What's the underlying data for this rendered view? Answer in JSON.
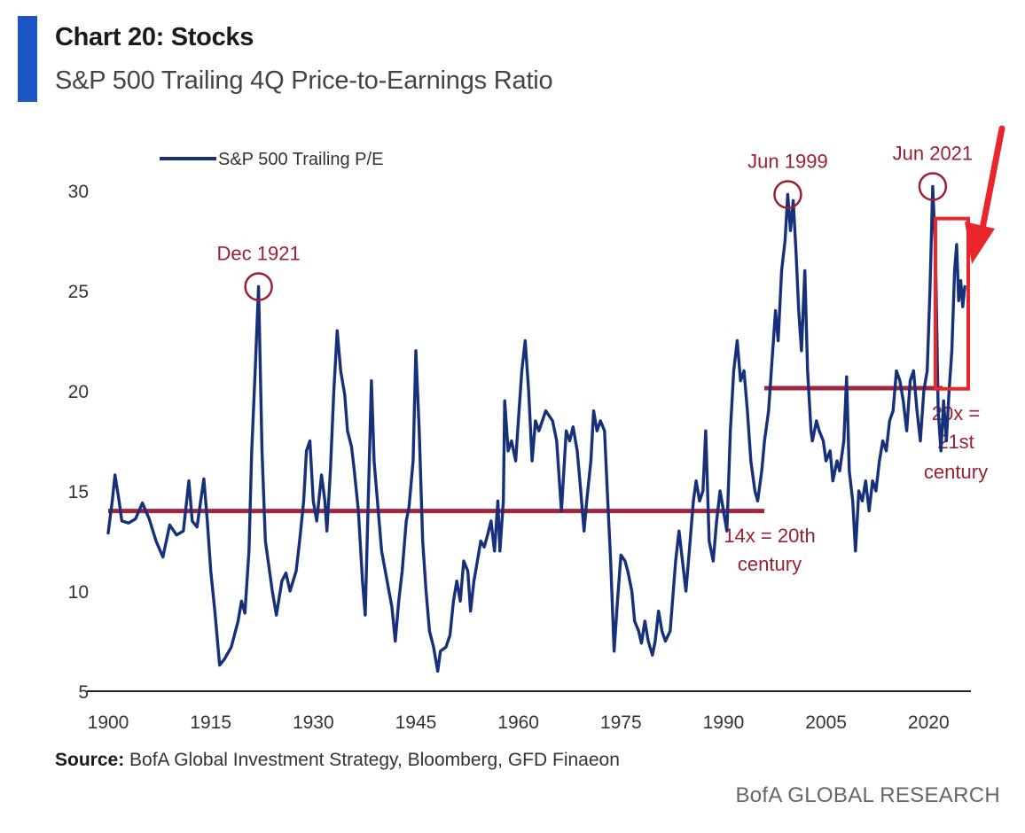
{
  "header": {
    "title": "Chart 20: Stocks",
    "subtitle": "S&P 500 Trailing 4Q Price-to-Earnings Ratio"
  },
  "footer": {
    "source_label": "Source:",
    "source_text": " BofA Global Investment Strategy, Bloomberg, GFD Finaeon",
    "brand": "BofA GLOBAL RESEARCH"
  },
  "colors": {
    "series": "#16307a",
    "annotation": "#9b2032",
    "reference_line": "#a0263c",
    "highlight_box": "#e8262b",
    "title_bar": "#1d56c4"
  },
  "chart_data": {
    "type": "line",
    "title": "",
    "xlabel": "",
    "ylabel": "",
    "xlim": [
      1900,
      2024
    ],
    "ylim": [
      5,
      30
    ],
    "x_ticks": [
      "1900",
      "1915",
      "1930",
      "1945",
      "1960",
      "1975",
      "1990",
      "2005",
      "2020"
    ],
    "y_ticks": [
      "5",
      "10",
      "15",
      "20",
      "25",
      "30"
    ],
    "grid": false,
    "legend_position": "top-left",
    "series": [
      {
        "name": "S&P 500 Trailing P/E",
        "points": [
          [
            1900,
            12.9
          ],
          [
            1900.6,
            14.5
          ],
          [
            1901,
            15.8
          ],
          [
            1901.6,
            14.5
          ],
          [
            1902,
            13.5
          ],
          [
            1903,
            13.4
          ],
          [
            1904,
            13.6
          ],
          [
            1905,
            14.4
          ],
          [
            1906,
            13.6
          ],
          [
            1907,
            12.5
          ],
          [
            1908,
            11.7
          ],
          [
            1909,
            13.3
          ],
          [
            1910,
            12.8
          ],
          [
            1911,
            13.0
          ],
          [
            1911.8,
            15.5
          ],
          [
            1912.3,
            13.5
          ],
          [
            1913,
            13.2
          ],
          [
            1914,
            15.6
          ],
          [
            1914.5,
            13.5
          ],
          [
            1915,
            11.0
          ],
          [
            1915.6,
            9.0
          ],
          [
            1916.3,
            6.3
          ],
          [
            1917,
            6.6
          ],
          [
            1918,
            7.2
          ],
          [
            1919,
            8.5
          ],
          [
            1919.5,
            9.5
          ],
          [
            1920,
            8.9
          ],
          [
            1920.6,
            12.0
          ],
          [
            1921,
            17.0
          ],
          [
            1921.5,
            21.0
          ],
          [
            1922,
            25.2
          ],
          [
            1922.5,
            17.0
          ],
          [
            1923,
            12.5
          ],
          [
            1924,
            10.0
          ],
          [
            1924.6,
            8.8
          ],
          [
            1925.4,
            10.5
          ],
          [
            1926,
            10.9
          ],
          [
            1926.6,
            10.0
          ],
          [
            1927.5,
            11.0
          ],
          [
            1928,
            12.5
          ],
          [
            1928.6,
            14.5
          ],
          [
            1929,
            17.0
          ],
          [
            1929.5,
            17.5
          ],
          [
            1930,
            14.5
          ],
          [
            1930.5,
            13.5
          ],
          [
            1931.2,
            15.8
          ],
          [
            1931.7,
            14.5
          ],
          [
            1932,
            13.0
          ],
          [
            1932.5,
            16.0
          ],
          [
            1933,
            20.0
          ],
          [
            1933.5,
            23.0
          ],
          [
            1934,
            21.0
          ],
          [
            1934.6,
            19.8
          ],
          [
            1935,
            18.0
          ],
          [
            1935.6,
            17.2
          ],
          [
            1936,
            16.0
          ],
          [
            1936.6,
            14.0
          ],
          [
            1937.2,
            10.5
          ],
          [
            1937.6,
            8.8
          ],
          [
            1938,
            14.0
          ],
          [
            1938.5,
            20.5
          ],
          [
            1938.9,
            16.5
          ],
          [
            1939.5,
            14.0
          ],
          [
            1940,
            12.0
          ],
          [
            1940.8,
            10.5
          ],
          [
            1941.5,
            9.2
          ],
          [
            1942,
            7.5
          ],
          [
            1942.5,
            9.5
          ],
          [
            1943,
            11.0
          ],
          [
            1943.6,
            13.5
          ],
          [
            1944,
            14.2
          ],
          [
            1944.6,
            16.5
          ],
          [
            1945,
            22.0
          ],
          [
            1945.5,
            18.0
          ],
          [
            1946,
            12.5
          ],
          [
            1946.5,
            10.0
          ],
          [
            1947,
            8.0
          ],
          [
            1947.6,
            7.2
          ],
          [
            1948.2,
            6.0
          ],
          [
            1948.6,
            7.0
          ],
          [
            1949.4,
            7.2
          ],
          [
            1950,
            7.8
          ],
          [
            1950.5,
            9.5
          ],
          [
            1951,
            10.5
          ],
          [
            1951.5,
            9.5
          ],
          [
            1952,
            11.5
          ],
          [
            1952.6,
            11.0
          ],
          [
            1953,
            9.0
          ],
          [
            1953.5,
            10.5
          ],
          [
            1954,
            11.5
          ],
          [
            1954.5,
            12.5
          ],
          [
            1955,
            12.2
          ],
          [
            1955.5,
            12.8
          ],
          [
            1956,
            13.5
          ],
          [
            1956.5,
            12.0
          ],
          [
            1957,
            14.5
          ],
          [
            1957.3,
            12.0
          ],
          [
            1957.8,
            14.5
          ],
          [
            1958,
            19.5
          ],
          [
            1958.5,
            17.0
          ],
          [
            1959,
            17.5
          ],
          [
            1959.6,
            16.5
          ],
          [
            1960,
            18.5
          ],
          [
            1960.5,
            21.0
          ],
          [
            1961,
            22.5
          ],
          [
            1961.5,
            20.0
          ],
          [
            1962,
            16.5
          ],
          [
            1962.5,
            18.5
          ],
          [
            1963,
            18.0
          ],
          [
            1964,
            19.0
          ],
          [
            1965,
            18.5
          ],
          [
            1965.6,
            17.5
          ],
          [
            1966.3,
            14.0
          ],
          [
            1967,
            18.0
          ],
          [
            1967.5,
            17.5
          ],
          [
            1968,
            18.2
          ],
          [
            1968.6,
            17.0
          ],
          [
            1969,
            15.5
          ],
          [
            1969.6,
            13.0
          ],
          [
            1970,
            14.5
          ],
          [
            1970.6,
            16.5
          ],
          [
            1971,
            19.0
          ],
          [
            1971.5,
            18.0
          ],
          [
            1972,
            18.5
          ],
          [
            1972.6,
            18.0
          ],
          [
            1973,
            15.0
          ],
          [
            1973.5,
            11.5
          ],
          [
            1974,
            7.0
          ],
          [
            1974.5,
            9.5
          ],
          [
            1975,
            11.8
          ],
          [
            1975.6,
            11.5
          ],
          [
            1976,
            11.0
          ],
          [
            1976.6,
            10.0
          ],
          [
            1977,
            8.5
          ],
          [
            1977.6,
            8.0
          ],
          [
            1978,
            7.4
          ],
          [
            1978.5,
            8.5
          ],
          [
            1979,
            7.5
          ],
          [
            1979.6,
            6.8
          ],
          [
            1980,
            7.5
          ],
          [
            1980.5,
            9.0
          ],
          [
            1981,
            8.0
          ],
          [
            1981.5,
            7.5
          ],
          [
            1982.2,
            8.0
          ],
          [
            1983,
            11.5
          ],
          [
            1983.5,
            13.0
          ],
          [
            1984,
            11.5
          ],
          [
            1984.5,
            10.0
          ],
          [
            1985,
            12.0
          ],
          [
            1985.6,
            14.5
          ],
          [
            1986,
            15.5
          ],
          [
            1986.5,
            14.5
          ],
          [
            1987,
            15.0
          ],
          [
            1987.4,
            18.0
          ],
          [
            1987.9,
            12.5
          ],
          [
            1988.5,
            11.5
          ],
          [
            1989,
            13.5
          ],
          [
            1989.5,
            15.0
          ],
          [
            1990,
            14.0
          ],
          [
            1990.5,
            13.0
          ],
          [
            1991,
            18.0
          ],
          [
            1991.5,
            21.0
          ],
          [
            1992,
            22.5
          ],
          [
            1992.5,
            20.5
          ],
          [
            1993,
            21.0
          ],
          [
            1993.5,
            19.0
          ],
          [
            1994,
            16.5
          ],
          [
            1994.6,
            15.0
          ],
          [
            1995,
            14.5
          ],
          [
            1995.6,
            16.0
          ],
          [
            1996,
            17.5
          ],
          [
            1996.6,
            19.0
          ],
          [
            1997,
            21.0
          ],
          [
            1997.6,
            24.0
          ],
          [
            1998,
            22.5
          ],
          [
            1998.5,
            26.0
          ],
          [
            1999,
            27.5
          ],
          [
            1999.4,
            29.8
          ],
          [
            1999.8,
            28.0
          ],
          [
            2000.2,
            29.5
          ],
          [
            2000.6,
            27.0
          ],
          [
            2001,
            24.0
          ],
          [
            2001.4,
            22.0
          ],
          [
            2001.9,
            26.0
          ],
          [
            2002.3,
            21.0
          ],
          [
            2002.8,
            18.0
          ],
          [
            2003,
            17.5
          ],
          [
            2003.6,
            18.5
          ],
          [
            2004,
            18.0
          ],
          [
            2004.6,
            17.5
          ],
          [
            2005,
            16.5
          ],
          [
            2005.6,
            17.0
          ],
          [
            2006,
            15.5
          ],
          [
            2006.6,
            16.5
          ],
          [
            2007,
            16.0
          ],
          [
            2007.6,
            17.5
          ],
          [
            2008,
            20.7
          ],
          [
            2008.4,
            16.0
          ],
          [
            2008.9,
            14.5
          ],
          [
            2009.3,
            12.0
          ],
          [
            2009.8,
            15.0
          ],
          [
            2010.3,
            14.5
          ],
          [
            2010.8,
            15.5
          ],
          [
            2011.3,
            14.0
          ],
          [
            2011.8,
            15.5
          ],
          [
            2012.3,
            15.0
          ],
          [
            2012.8,
            16.5
          ],
          [
            2013.3,
            17.5
          ],
          [
            2013.8,
            17.0
          ],
          [
            2014.3,
            18.5
          ],
          [
            2014.8,
            19.0
          ],
          [
            2015.3,
            21.0
          ],
          [
            2015.8,
            20.5
          ],
          [
            2016.3,
            19.5
          ],
          [
            2016.8,
            18.0
          ],
          [
            2017.3,
            20.5
          ],
          [
            2017.8,
            21.0
          ],
          [
            2018.3,
            19.0
          ],
          [
            2018.8,
            17.5
          ],
          [
            2019.3,
            20.0
          ],
          [
            2019.8,
            21.0
          ],
          [
            2020.2,
            25.0
          ],
          [
            2020.6,
            30.2
          ],
          [
            2021.0,
            27.0
          ],
          [
            2021.4,
            19.0
          ],
          [
            2021.8,
            17.0
          ],
          [
            2022.2,
            19.5
          ],
          [
            2022.6,
            17.5
          ],
          [
            2023.0,
            20.0
          ],
          [
            2023.4,
            22.0
          ],
          [
            2023.8,
            26.0
          ],
          [
            2024.1,
            27.3
          ],
          [
            2024.4,
            24.5
          ],
          [
            2024.7,
            25.5
          ],
          [
            2025.0,
            24.2
          ],
          [
            2025.3,
            25.2
          ]
        ]
      }
    ],
    "reference_lines": [
      {
        "value": 14,
        "x_start": 1900,
        "x_end": 2000,
        "label_line1": "14x = 20th",
        "label_line2": "century"
      },
      {
        "value": 20,
        "x_start": 2000,
        "x_end": 2024,
        "label_line1": "20x =",
        "label_line2": "21st",
        "label_line3": "century"
      }
    ],
    "annotations": [
      {
        "label": "Dec 1921",
        "x": 1922,
        "y": 25.2
      },
      {
        "label": "Jun 1999",
        "x": 1999.4,
        "y": 29.8
      },
      {
        "label": "Jun 2021",
        "x": 2020.6,
        "y": 30.2
      }
    ],
    "highlight_box": {
      "x_start": 2021.0,
      "x_end": 2025.8,
      "y_start": 20.1,
      "y_end": 28.6
    }
  }
}
